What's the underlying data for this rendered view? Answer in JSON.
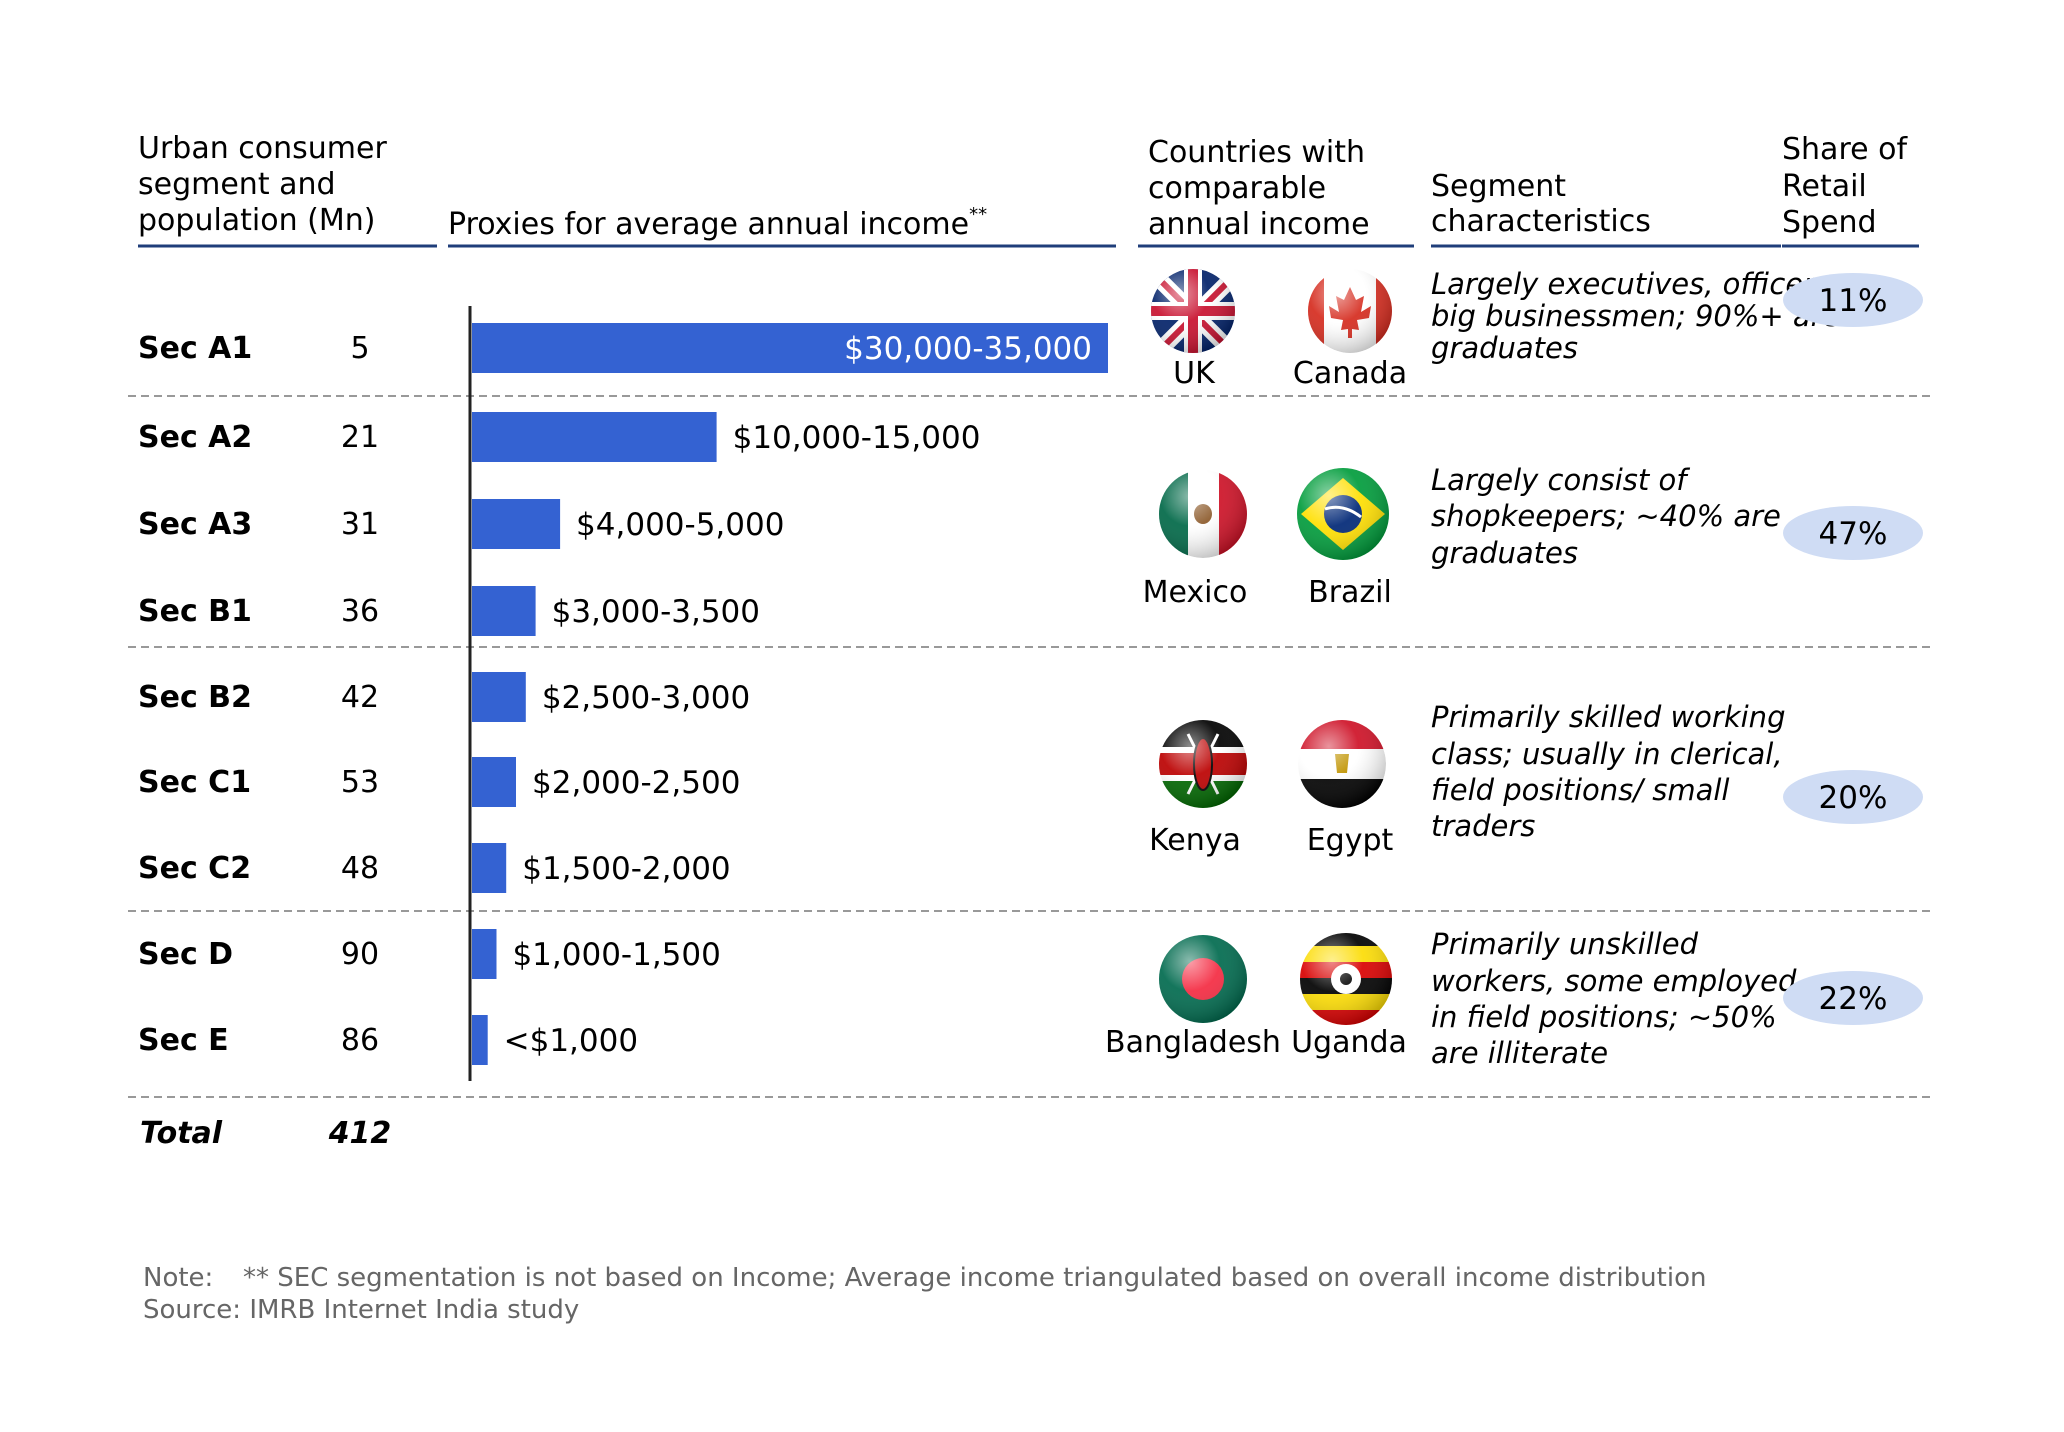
{
  "headers": {
    "segment": [
      "Urban consumer",
      "segment and",
      "population (Mn)"
    ],
    "income": "Proxies for average annual income",
    "income_sup": "**",
    "countries": [
      "Countries with",
      "comparable",
      "annual income"
    ],
    "characteristics": [
      "Segment",
      "characteristics"
    ],
    "share": [
      "Share of",
      "Retail",
      "Spend"
    ]
  },
  "total": {
    "label": "Total",
    "value": "412"
  },
  "chart_data": {
    "type": "bar",
    "orientation": "horizontal",
    "title": "Proxies for average annual income",
    "categories": [
      "Sec A1",
      "Sec A2",
      "Sec A3",
      "Sec B1",
      "Sec B2",
      "Sec C1",
      "Sec C2",
      "Sec D",
      "Sec E"
    ],
    "population_mn": [
      5,
      21,
      31,
      36,
      42,
      53,
      48,
      90,
      86
    ],
    "income_labels": [
      "$30,000-35,000",
      "$10,000-15,000",
      "$4,000-5,000",
      "$3,000-3,500",
      "$2,500-3,000",
      "$2,000-2,500",
      "$1,500-2,000",
      "$1,000-1,500",
      "<$1,000"
    ],
    "values": [
      32500,
      12500,
      4500,
      3250,
      2750,
      2250,
      1750,
      1250,
      800
    ],
    "bar_color": "#3462D2",
    "xlim": [
      0,
      32500
    ]
  },
  "groups": [
    {
      "countries": [
        {
          "name": "UK",
          "icon": "uk-flag-icon"
        },
        {
          "name": "Canada",
          "icon": "canada-flag-icon"
        }
      ],
      "characteristics": [
        "Largely executives, officers,",
        "big businessmen; 90%+ are",
        "graduates"
      ],
      "share": "11%"
    },
    {
      "countries": [
        {
          "name": "Mexico",
          "icon": "mexico-flag-icon"
        },
        {
          "name": "Brazil",
          "icon": "brazil-flag-icon"
        }
      ],
      "characteristics": [
        "Largely consist of",
        "shopkeepers; ~40% are",
        "graduates"
      ],
      "share": "47%"
    },
    {
      "countries": [
        {
          "name": "Kenya",
          "icon": "kenya-flag-icon"
        },
        {
          "name": "Egypt",
          "icon": "egypt-flag-icon"
        }
      ],
      "characteristics": [
        "Primarily skilled working",
        "class; usually in  clerical,",
        "field positions/   small",
        "traders"
      ],
      "share": "20%"
    },
    {
      "countries": [
        {
          "name": "Bangladesh",
          "icon": "bangladesh-flag-icon"
        },
        {
          "name": "Uganda",
          "icon": "uganda-flag-icon"
        }
      ],
      "characteristics": [
        "Primarily unskilled",
        "workers, some employed",
        "in field positions; ~50%",
        "are illiterate"
      ],
      "share": "22%"
    }
  ],
  "colors": {
    "header_rule": "#1F3E7A",
    "share_pill": "#CFDCF4",
    "divider": "#999999"
  },
  "note": {
    "line1_label": "Note:",
    "line1_text": "** SEC segmentation is not based on Income; Average income triangulated based on overall income distribution",
    "line2": "Source: IMRB Internet India study"
  }
}
